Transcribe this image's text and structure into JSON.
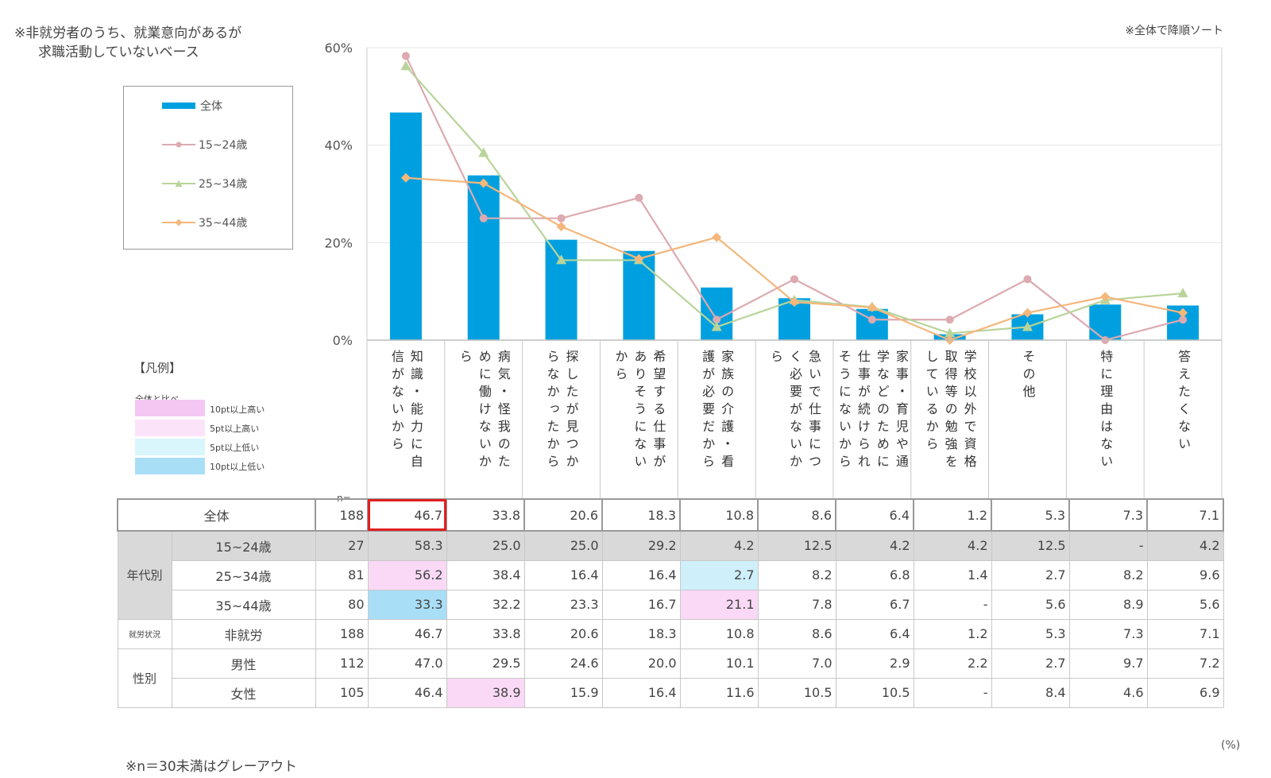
{
  "notes": {
    "base_line1": "※非就労者のうち、就業意向があるが",
    "base_line2": "求職活動していないベース",
    "sort": "※全体で降順ソート",
    "gray_out": "※n＝30未満はグレーアウト",
    "unit": "(%)",
    "n_label": "n="
  },
  "highlight_legend": {
    "title": "【凡例】",
    "subtitle": "全体と比べ",
    "items": [
      {
        "label": "10pt以上高い",
        "color": "#f4c6f2"
      },
      {
        "label": "5pt以上高い",
        "color": "#fbe3fa"
      },
      {
        "label": "5pt以上低い",
        "color": "#d8f6fb"
      },
      {
        "label": "10pt以上低い",
        "color": "#a9def7"
      }
    ]
  },
  "table": {
    "rows": [
      {
        "group": "",
        "label": "全体",
        "n": "188",
        "values": [
          "46.7",
          "33.8",
          "20.6",
          "18.3",
          "10.8",
          "8.6",
          "6.4",
          "1.2",
          "5.3",
          "7.3",
          "7.1"
        ]
      },
      {
        "group": "年代別",
        "label": "15~24歳",
        "n": "27",
        "values": [
          "58.3",
          "25.0",
          "25.0",
          "29.2",
          "4.2",
          "12.5",
          "4.2",
          "4.2",
          "12.5",
          "-",
          "4.2"
        ]
      },
      {
        "group": "年代別",
        "label": "25~34歳",
        "n": "81",
        "values": [
          "56.2",
          "38.4",
          "16.4",
          "16.4",
          "2.7",
          "8.2",
          "6.8",
          "1.4",
          "2.7",
          "8.2",
          "9.6"
        ]
      },
      {
        "group": "年代別",
        "label": "35~44歳",
        "n": "80",
        "values": [
          "33.3",
          "32.2",
          "23.3",
          "16.7",
          "21.1",
          "7.8",
          "6.7",
          "-",
          "5.6",
          "8.9",
          "5.6"
        ]
      },
      {
        "group": "就労状況",
        "label": "非就労",
        "n": "188",
        "values": [
          "46.7",
          "33.8",
          "20.6",
          "18.3",
          "10.8",
          "8.6",
          "6.4",
          "1.2",
          "5.3",
          "7.3",
          "7.1"
        ]
      },
      {
        "group": "性別",
        "label": "男性",
        "n": "112",
        "values": [
          "47.0",
          "29.5",
          "24.6",
          "20.0",
          "10.1",
          "7.0",
          "2.9",
          "2.2",
          "2.7",
          "9.7",
          "7.2"
        ]
      },
      {
        "group": "性別",
        "label": "女性",
        "n": "105",
        "values": [
          "46.4",
          "38.9",
          "15.9",
          "16.4",
          "11.6",
          "10.5",
          "10.5",
          "-",
          "8.4",
          "4.6",
          "6.9"
        ]
      }
    ]
  },
  "chart_data": {
    "type": "bar",
    "ylim": [
      0,
      60
    ],
    "yticks": [
      "0%",
      "20%",
      "40%",
      "60%"
    ],
    "categories": [
      [
        "知識・能力に自",
        "信がないから"
      ],
      [
        "病気・怪我のた",
        "めに働けないか",
        "ら"
      ],
      [
        "探したが見つか",
        "らなかったから"
      ],
      [
        "希望する仕事が",
        "ありそうにない",
        "から"
      ],
      [
        "家族の介護・看",
        "護が必要だから"
      ],
      [
        "急いで仕事につ",
        "く必要がないか",
        "ら"
      ],
      [
        "家事・育児や通",
        "学などのために",
        "仕事が続けられ",
        "そうにないから"
      ],
      [
        "学校以外で資格",
        "取得等の勉強を",
        "しているから"
      ],
      [
        "その他"
      ],
      [
        "特に理由はない"
      ],
      [
        "答えたくない"
      ]
    ],
    "series": [
      {
        "name": "全体",
        "kind": "bar",
        "color": "#00a0e0",
        "values": [
          46.7,
          33.8,
          20.6,
          18.3,
          10.8,
          8.6,
          6.4,
          1.2,
          5.3,
          7.3,
          7.1
        ]
      },
      {
        "name": "15~24歳",
        "kind": "line",
        "marker": "circle",
        "color": "#dcaab0",
        "values": [
          58.3,
          25.0,
          25.0,
          29.2,
          4.2,
          12.5,
          4.2,
          4.2,
          12.5,
          0,
          4.2
        ]
      },
      {
        "name": "25~34歳",
        "kind": "line",
        "marker": "triangle",
        "color": "#b9d49a",
        "values": [
          56.2,
          38.4,
          16.4,
          16.4,
          2.7,
          8.2,
          6.8,
          1.4,
          2.7,
          8.2,
          9.6
        ]
      },
      {
        "name": "35~44歳",
        "kind": "line",
        "marker": "diamond",
        "color": "#f4b77c",
        "values": [
          33.3,
          32.2,
          23.3,
          16.7,
          21.1,
          7.8,
          6.7,
          0,
          5.6,
          8.9,
          5.6
        ]
      }
    ],
    "grid": true,
    "legend_position": "top-left"
  }
}
